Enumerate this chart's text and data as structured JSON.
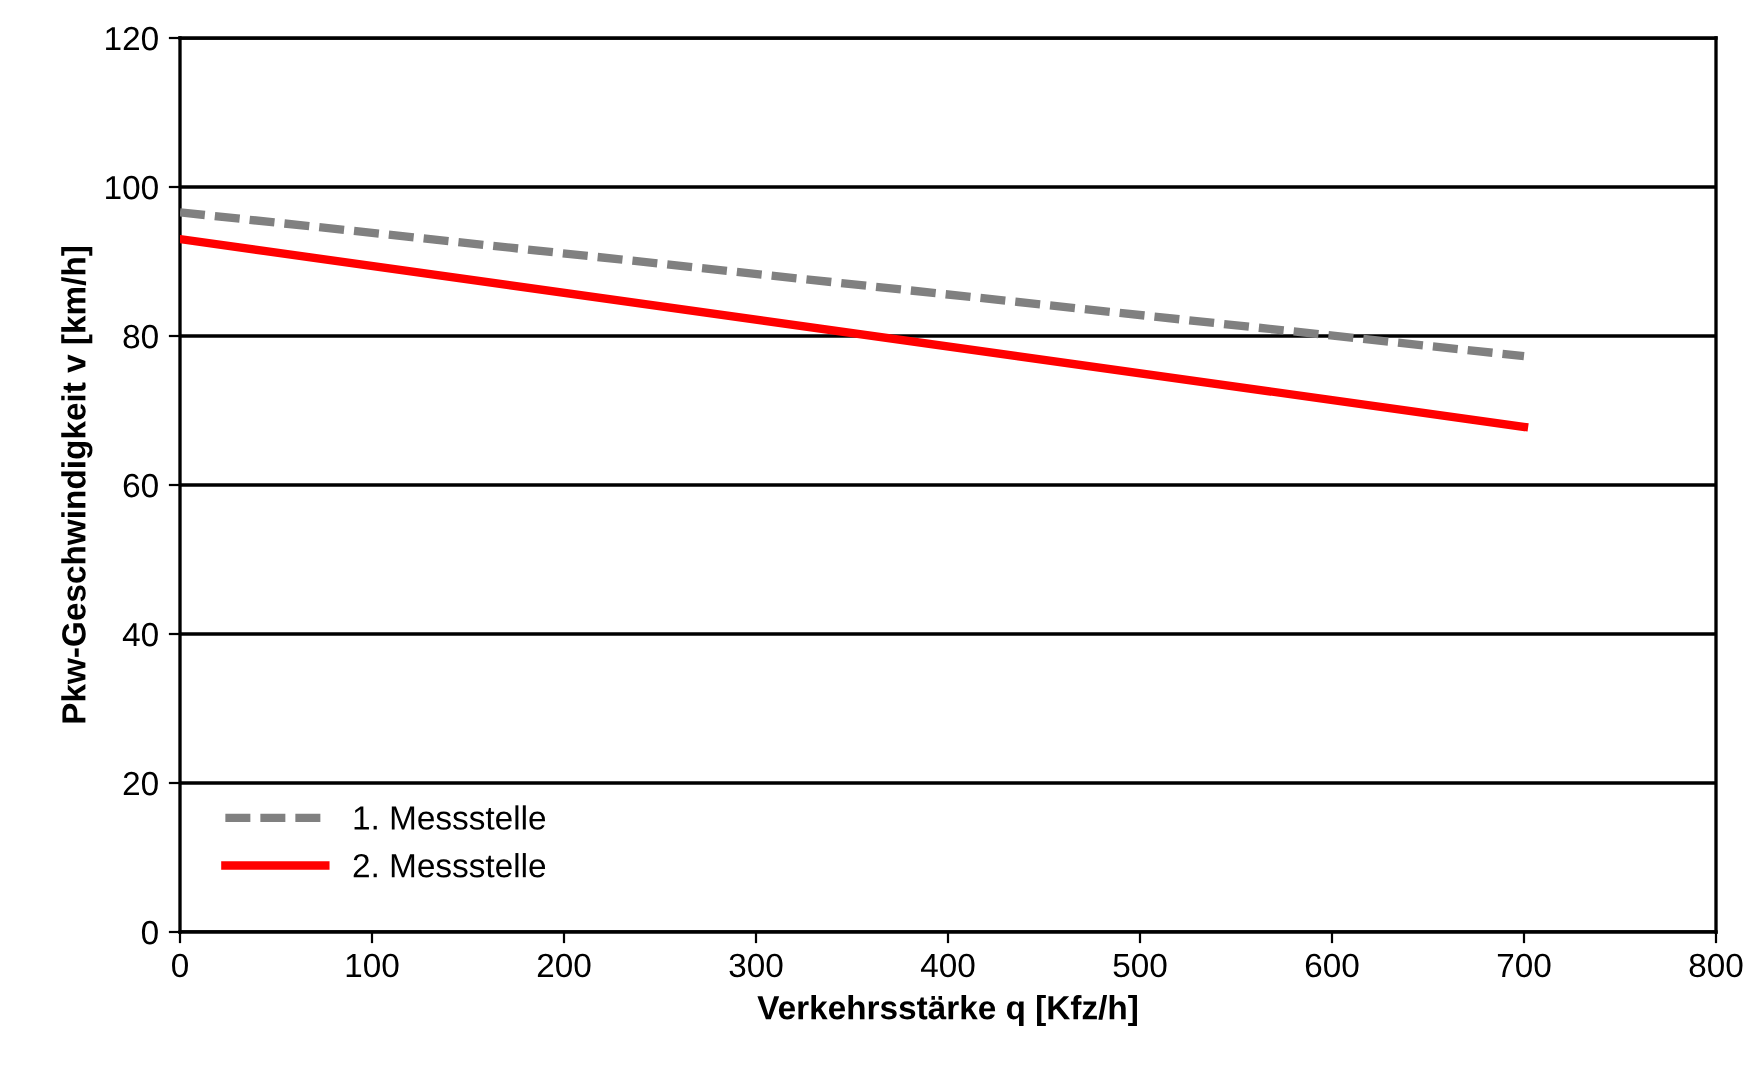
{
  "chart_data": {
    "type": "line",
    "xlabel": "Verkehrsstärke q [Kfz/h]",
    "ylabel": "Pkw-Geschwindigkeit v [km/h]",
    "x": [
      0,
      700
    ],
    "series": [
      {
        "name": "1. Messstelle",
        "color": "#808080",
        "values": [
          96.6,
          77.3
        ],
        "line_style": "dashed"
      },
      {
        "name": "2. Messstelle",
        "color": "#ff0000",
        "values": [
          93.0,
          67.8
        ],
        "line_style": "solid"
      }
    ],
    "xlim": [
      0,
      800
    ],
    "xticks": [
      0,
      100,
      200,
      300,
      400,
      500,
      600,
      700,
      800
    ],
    "ylim": [
      0,
      120
    ],
    "yticks": [
      0,
      20,
      40,
      60,
      80,
      100,
      120
    ],
    "grid": "y",
    "legend": "bottom left",
    "marker": "none"
  }
}
